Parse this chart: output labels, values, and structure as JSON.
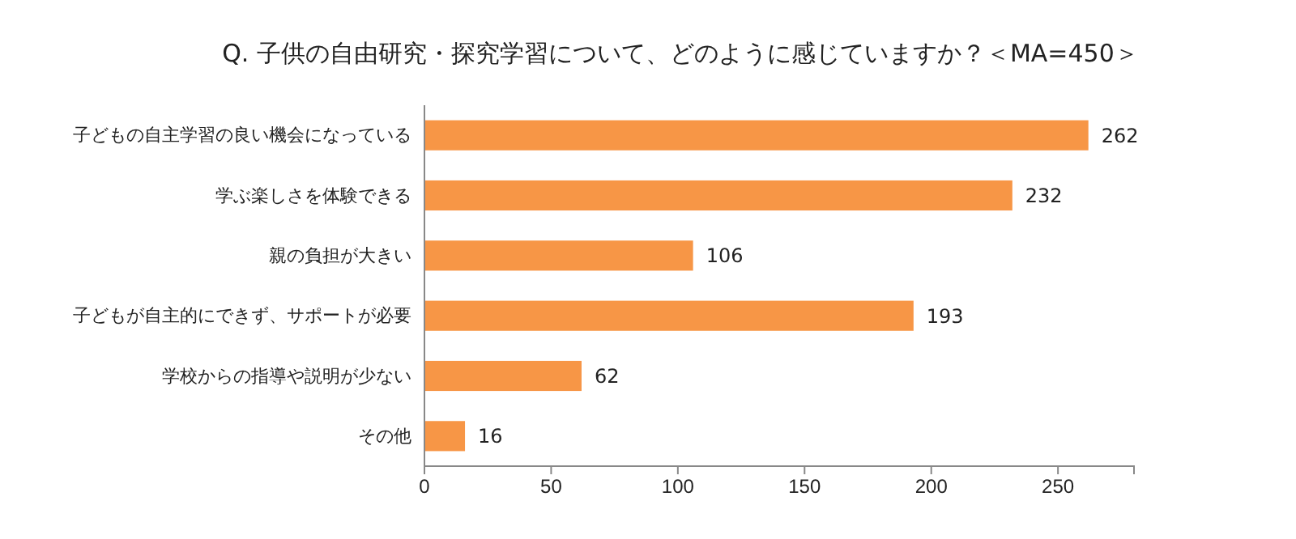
{
  "chart_data": {
    "type": "bar",
    "orientation": "horizontal",
    "title": "Q. 子供の自由研究・探究学習について、どのように感じていますか？＜MA=450＞",
    "categories": [
      "子どもの自主学習の良い機会になっている",
      "学ぶ楽しさを体験できる",
      "親の負担が大きい",
      "子どもが自主的にできず、サポートが必要",
      "学校からの指導や説明が少ない",
      "その他"
    ],
    "values": [
      262,
      232,
      106,
      193,
      62,
      16
    ],
    "color": "#f79646",
    "data_labels": true,
    "xlim": [
      0,
      280
    ],
    "xticks": [
      0,
      50,
      100,
      150,
      200,
      250
    ],
    "grid": false
  }
}
